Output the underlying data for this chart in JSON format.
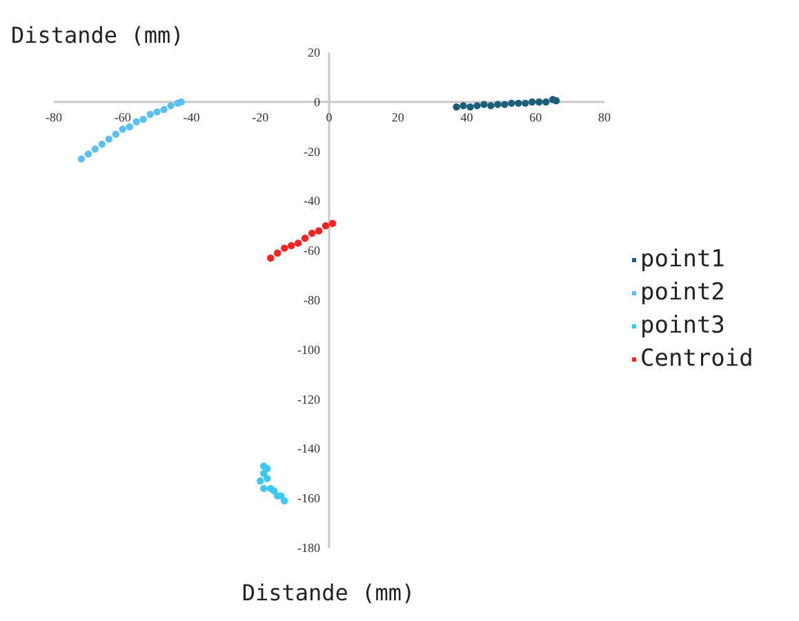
{
  "chart_data": {
    "type": "scatter",
    "xlabel": "Distande (mm)",
    "ylabel": "Distande (mm)",
    "xlim": [
      -80,
      80
    ],
    "xticks": [
      -80,
      -60,
      -40,
      -20,
      0,
      20,
      40,
      60,
      80
    ],
    "ylim": [
      -180,
      20
    ],
    "yticks": [
      -180,
      -160,
      -140,
      -120,
      -100,
      -80,
      -60,
      -40,
      -20,
      0,
      20
    ],
    "marker": "circle",
    "legend": "right",
    "grid": false,
    "series": [
      {
        "name": "point1",
        "color": "#1b5e7b",
        "x": [
          37,
          39,
          41,
          43,
          45,
          47,
          49,
          51,
          53,
          55,
          57,
          59,
          61,
          63,
          65,
          66
        ],
        "values": [
          -2,
          -1.5,
          -2,
          -1.5,
          -1,
          -1.5,
          -1,
          -1,
          -0.5,
          -0.5,
          -0.5,
          0,
          0,
          0,
          1,
          0.5
        ]
      },
      {
        "name": "point2",
        "color": "#5bc0f0",
        "x": [
          -72,
          -70,
          -68,
          -66,
          -64,
          -62,
          -60,
          -58,
          -56,
          -54,
          -52,
          -50,
          -48,
          -46,
          -44,
          -43
        ],
        "values": [
          -23,
          -21,
          -19,
          -17,
          -15,
          -13,
          -11,
          -10,
          -8,
          -7,
          -5,
          -4,
          -3,
          -1.5,
          -0.5,
          0
        ]
      },
      {
        "name": "point3",
        "color": "#3cc8f0",
        "x": [
          -19,
          -18,
          -18,
          -17,
          -15,
          -13,
          -14,
          -16,
          -19,
          -20,
          -19
        ],
        "values": [
          -147,
          -148,
          -152,
          -156,
          -159,
          -161,
          -159,
          -157,
          -156,
          -153,
          -150
        ]
      },
      {
        "name": "Centroid",
        "color": "#ff2020",
        "x": [
          -17,
          -15,
          -13,
          -11,
          -9,
          -7,
          -5,
          -3,
          -1,
          1
        ],
        "values": [
          -63,
          -61,
          -59,
          -58,
          -57,
          -55,
          -53,
          -52,
          -50,
          -49
        ]
      }
    ]
  }
}
